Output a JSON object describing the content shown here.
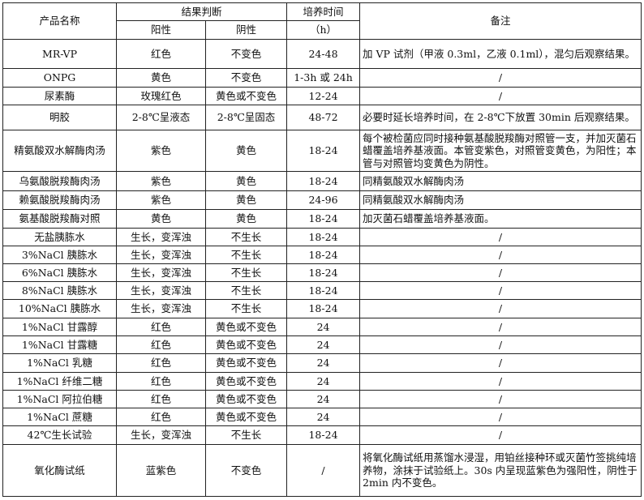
{
  "header": {
    "product_name": "产品名称",
    "result": "结果判断",
    "positive": "阳性",
    "negative": "阴性",
    "time_line1": "培养时间",
    "time_line2": "（h）",
    "notes": "备注"
  },
  "rows": [
    {
      "name": "MR-VP",
      "pos": "红色",
      "neg": "不变色",
      "time": "24-48",
      "note": "加 VP 试剂（甲液 0.3ml，乙液 0.1ml），混匀后观察结果。"
    },
    {
      "name": "ONPG",
      "pos": "黄色",
      "neg": "不变色",
      "time": "1-3h 或 24h",
      "note": "/"
    },
    {
      "name": "尿素酶",
      "pos": "玫瑰红色",
      "neg": "黄色或不变色",
      "time": "12-24",
      "note": "/"
    },
    {
      "name": "明胶",
      "pos": "2-8℃呈液态",
      "neg": "2-8℃呈固态",
      "time": "48-72",
      "note": "必要时延长培养时间，在 2-8℃下放置 30min 后观察结果。"
    },
    {
      "name": "精氨酸双水解酶肉汤",
      "pos": "紫色",
      "neg": "黄色",
      "time": "18-24",
      "note": "每个被检菌应同时接种氨基酸脱羧酶对照管一支，并加灭菌石蜡覆盖培养基液面。本管变紫色，对照管变黄色，为阳性；本管与对照管均变黄色为阴性。"
    },
    {
      "name": "乌氨酸脱羧酶肉汤",
      "pos": "紫色",
      "neg": "黄色",
      "time": "18-24",
      "note": "同精氨酸双水解酶肉汤"
    },
    {
      "name": "赖氨酸脱羧酶肉汤",
      "pos": "紫色",
      "neg": "黄色",
      "time": "24-96",
      "note": "同精氨酸双水解酶肉汤"
    },
    {
      "name": "氨基酸脱羧酶对照",
      "pos": "黄色",
      "neg": "黄色",
      "time": "18-24",
      "note": "加灭菌石蜡覆盖培养基液面。"
    },
    {
      "name": "无盐胰胨水",
      "pos": "生长，变浑浊",
      "neg": "不生长",
      "time": "18-24",
      "note": "/"
    },
    {
      "name": "3%NaCl 胰胨水",
      "pos": "生长，变浑浊",
      "neg": "不生长",
      "time": "18-24",
      "note": "/"
    },
    {
      "name": "6%NaCl 胰胨水",
      "pos": "生长，变浑浊",
      "neg": "不生长",
      "time": "18-24",
      "note": "/"
    },
    {
      "name": "8%NaCl 胰胨水",
      "pos": "生长，变浑浊",
      "neg": "不生长",
      "time": "18-24",
      "note": "/"
    },
    {
      "name": "10%NaCl 胰胨水",
      "pos": "生长，变浑浊",
      "neg": "不生长",
      "time": "18-24",
      "note": "/"
    },
    {
      "name": "1%NaCl 甘露醇",
      "pos": "红色",
      "neg": "黄色或不变色",
      "time": "24",
      "note": "/"
    },
    {
      "name": "1%NaCl 甘露糖",
      "pos": "红色",
      "neg": "黄色或不变色",
      "time": "24",
      "note": "/"
    },
    {
      "name": "1%NaCl 乳糖",
      "pos": "红色",
      "neg": "黄色或不变色",
      "time": "24",
      "note": "/"
    },
    {
      "name": "1%NaCl 纤维二糖",
      "pos": "红色",
      "neg": "黄色或不变色",
      "time": "24",
      "note": "/"
    },
    {
      "name": "1%NaCl 阿拉伯糖",
      "pos": "红色",
      "neg": "黄色或不变色",
      "time": "24",
      "note": "/"
    },
    {
      "name": "1%NaCl 蔗糖",
      "pos": "红色",
      "neg": "黄色或不变色",
      "time": "24",
      "note": "/"
    },
    {
      "name": "42℃生长试验",
      "pos": "生长，变浑浊",
      "neg": "不生长",
      "time": "18-24",
      "note": "/"
    },
    {
      "name": "氧化酶试纸",
      "pos": "蓝紫色",
      "neg": "不变色",
      "time": "/",
      "note": "将氧化酶试纸用蒸馏水浸湿，用铂丝接种环或灭菌竹签挑纯培养物，涂抹于试验纸上。30s 内呈现蓝紫色为强阳性，阴性于 2min 内不变色。"
    }
  ]
}
